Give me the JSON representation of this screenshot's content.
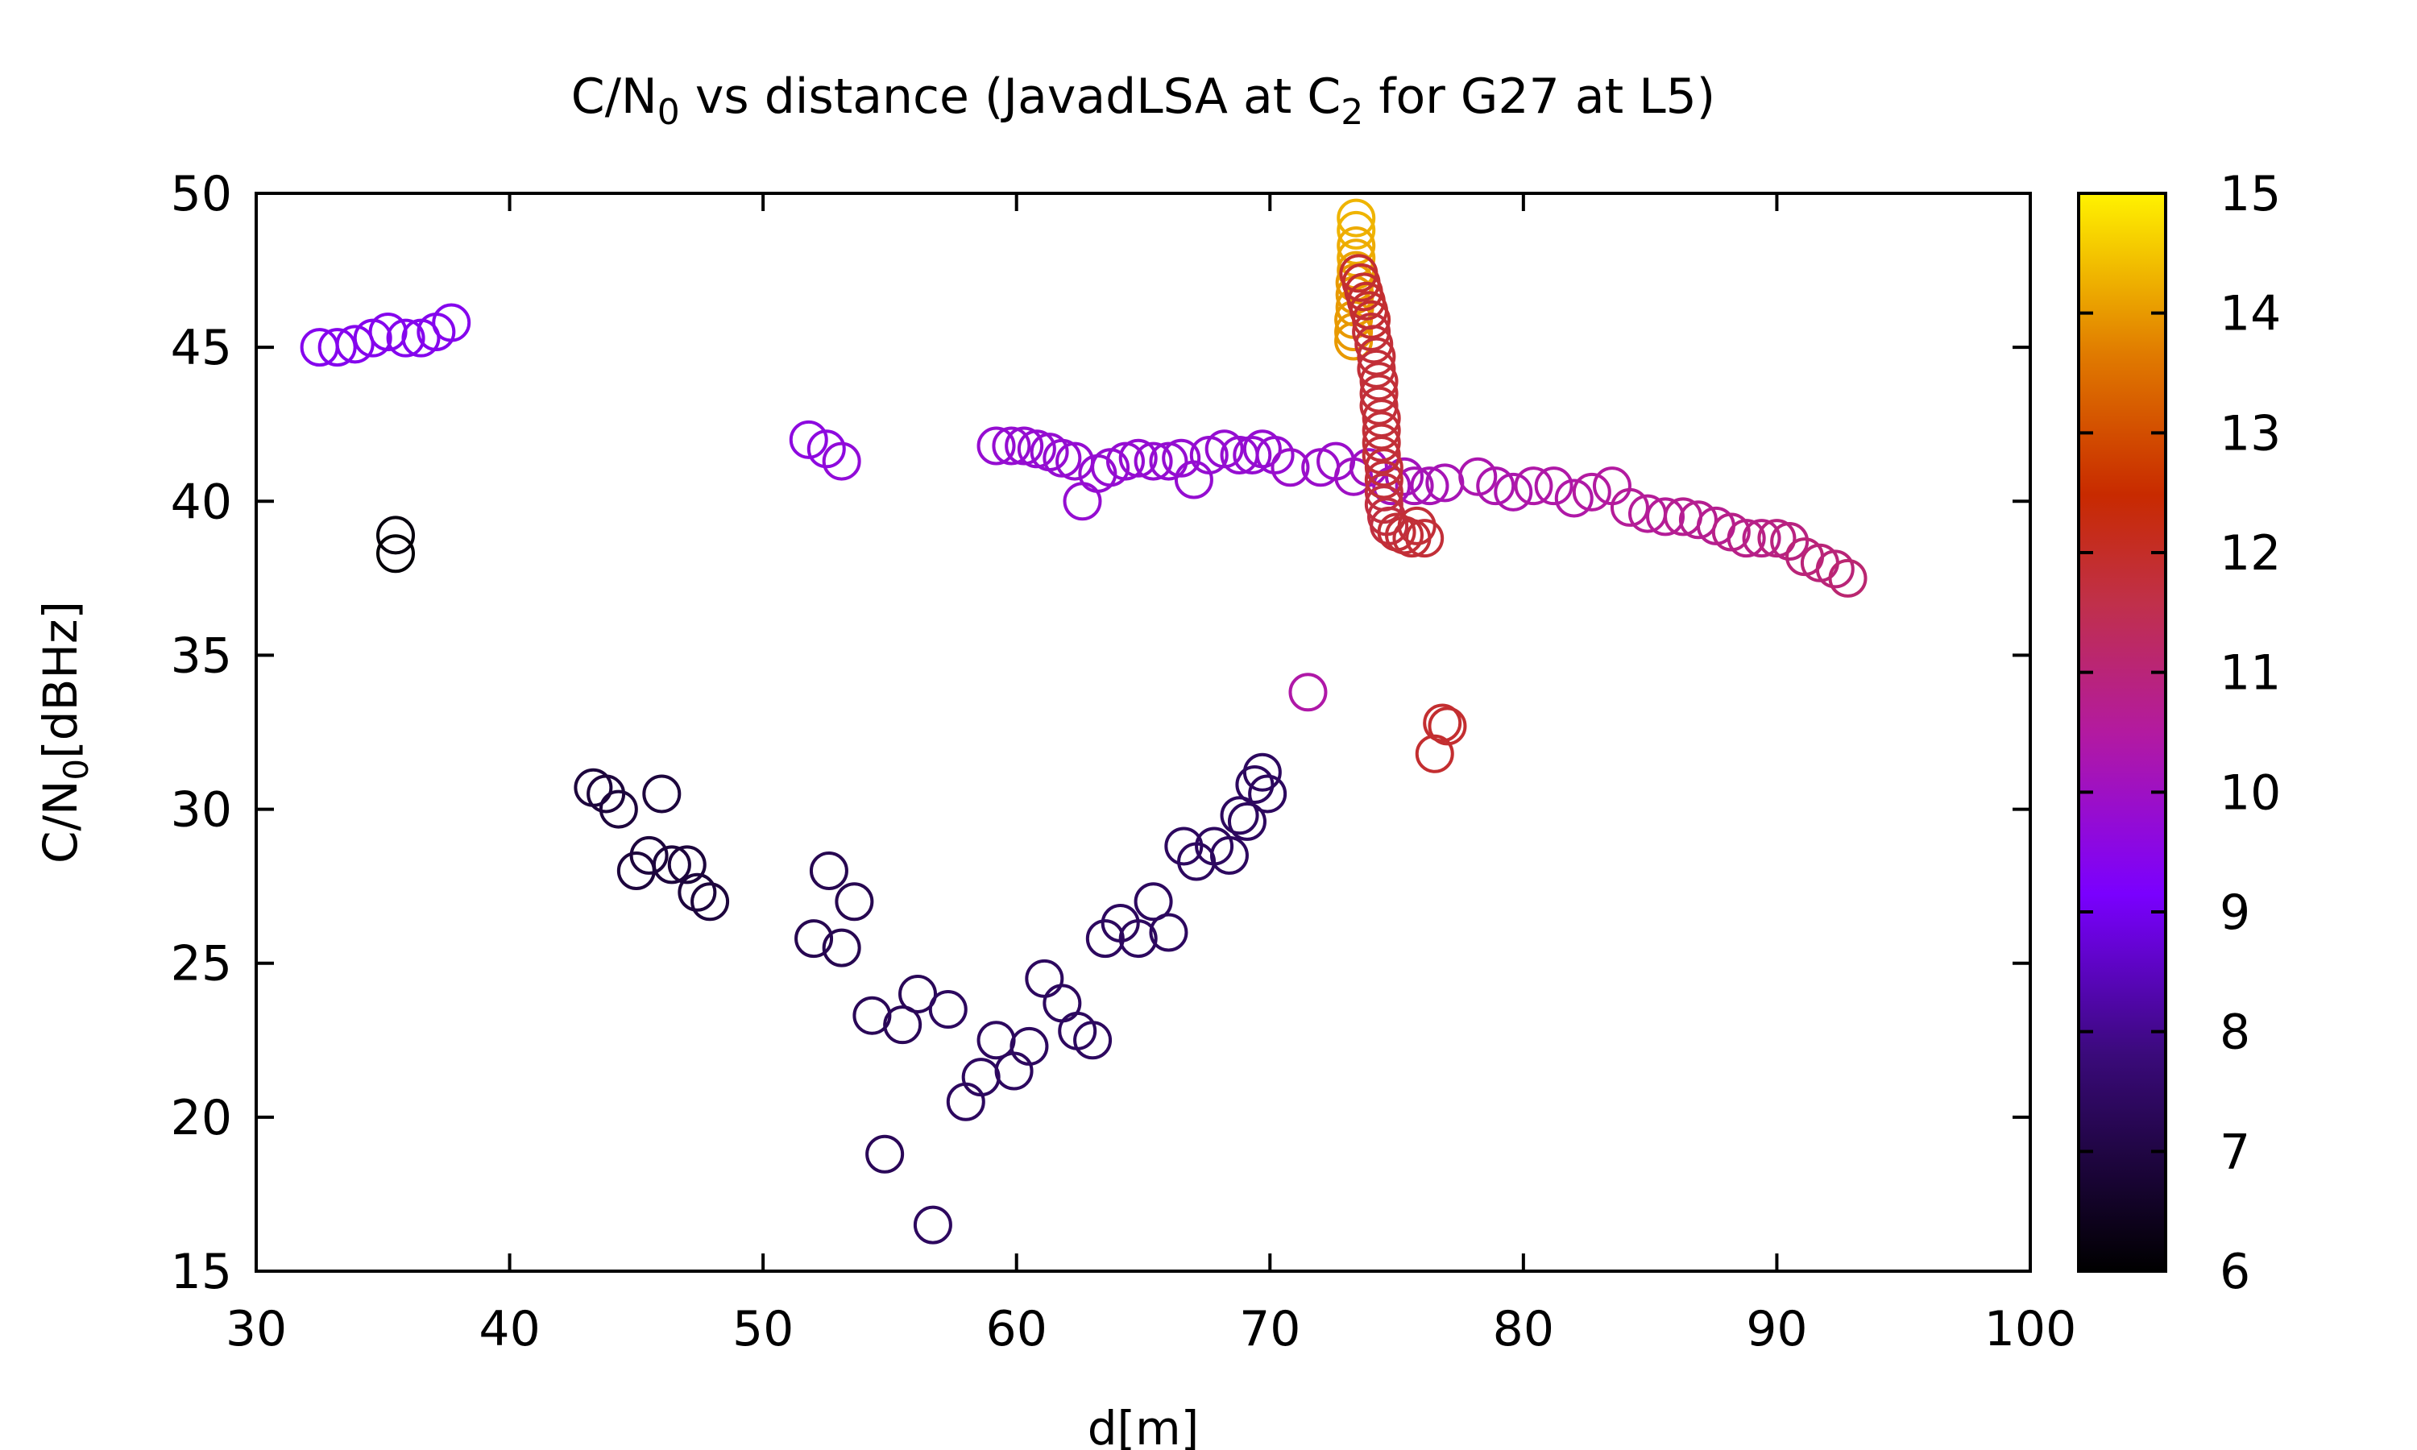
{
  "chart_data": {
    "type": "scatter",
    "title": {
      "parts": [
        {
          "text": "C/N",
          "sub": false
        },
        {
          "text": "0",
          "sub": true
        },
        {
          "text": " vs distance (JavadLSA at C",
          "sub": false
        },
        {
          "text": "2",
          "sub": true
        },
        {
          "text": " for G27 at L5)",
          "sub": false
        }
      ]
    },
    "xlabel": "d[m]",
    "ylabel": {
      "parts": [
        {
          "text": "C/N",
          "sub": false
        },
        {
          "text": "0",
          "sub": true
        },
        {
          "text": "[dBHz]",
          "sub": false
        }
      ]
    },
    "xlim": [
      30,
      100
    ],
    "ylim": [
      15,
      50
    ],
    "x_ticks": [
      30,
      40,
      50,
      60,
      70,
      80,
      90,
      100
    ],
    "y_ticks": [
      15,
      20,
      25,
      30,
      35,
      40,
      45,
      50
    ],
    "colorbar": {
      "range": [
        6,
        15
      ],
      "ticks": [
        6,
        7,
        8,
        9,
        10,
        11,
        12,
        13,
        14,
        15
      ],
      "palette": "black-purple-red-orange-yellow"
    },
    "grid": false,
    "marker": "open-circle",
    "points": [
      [
        32.5,
        45.0,
        9.4
      ],
      [
        33.2,
        45.0,
        9.4
      ],
      [
        33.9,
        45.1,
        9.4
      ],
      [
        34.6,
        45.3,
        9.4
      ],
      [
        35.2,
        45.5,
        9.4
      ],
      [
        35.9,
        45.3,
        9.4
      ],
      [
        36.5,
        45.3,
        9.4
      ],
      [
        37.1,
        45.5,
        9.4
      ],
      [
        37.7,
        45.8,
        9.4
      ],
      [
        35.5,
        38.9,
        6.2
      ],
      [
        35.5,
        38.3,
        6.1
      ],
      [
        51.8,
        42.0,
        9.6
      ],
      [
        52.5,
        41.7,
        9.6
      ],
      [
        53.1,
        41.3,
        9.7
      ],
      [
        59.2,
        41.8,
        9.8
      ],
      [
        59.8,
        41.8,
        9.8
      ],
      [
        60.3,
        41.8,
        9.8
      ],
      [
        60.8,
        41.7,
        9.8
      ],
      [
        61.3,
        41.6,
        9.8
      ],
      [
        61.8,
        41.4,
        9.8
      ],
      [
        62.3,
        41.3,
        9.8
      ],
      [
        62.6,
        40.0,
        9.8
      ],
      [
        63.2,
        40.9,
        9.8
      ],
      [
        63.7,
        41.1,
        9.8
      ],
      [
        64.3,
        41.3,
        9.8
      ],
      [
        64.8,
        41.4,
        9.8
      ],
      [
        65.4,
        41.3,
        9.8
      ],
      [
        66.0,
        41.3,
        9.8
      ],
      [
        66.5,
        41.4,
        9.8
      ],
      [
        67.0,
        40.7,
        9.8
      ],
      [
        67.6,
        41.5,
        9.8
      ],
      [
        68.2,
        41.7,
        9.8
      ],
      [
        68.8,
        41.5,
        9.8
      ],
      [
        69.3,
        41.5,
        9.8
      ],
      [
        69.7,
        41.7,
        9.8
      ],
      [
        70.2,
        41.5,
        9.8
      ],
      [
        70.8,
        41.1,
        9.9
      ],
      [
        72.0,
        41.1,
        9.9
      ],
      [
        72.6,
        41.3,
        9.9
      ],
      [
        73.3,
        40.8,
        10.0
      ],
      [
        73.9,
        41.1,
        10.0
      ],
      [
        74.8,
        40.5,
        10.1
      ],
      [
        75.3,
        40.8,
        10.1
      ],
      [
        75.7,
        40.5,
        10.2
      ],
      [
        76.3,
        40.5,
        10.2
      ],
      [
        76.9,
        40.6,
        10.2
      ],
      [
        78.2,
        40.8,
        10.3
      ],
      [
        78.9,
        40.5,
        10.3
      ],
      [
        79.6,
        40.3,
        10.3
      ],
      [
        80.4,
        40.5,
        10.4
      ],
      [
        81.2,
        40.5,
        10.4
      ],
      [
        82.0,
        40.1,
        10.4
      ],
      [
        82.7,
        40.3,
        10.5
      ],
      [
        83.5,
        40.5,
        10.5
      ],
      [
        84.2,
        39.8,
        10.6
      ],
      [
        84.9,
        39.6,
        10.6
      ],
      [
        85.6,
        39.5,
        10.6
      ],
      [
        86.3,
        39.5,
        10.7
      ],
      [
        86.9,
        39.4,
        10.7
      ],
      [
        87.6,
        39.2,
        10.7
      ],
      [
        88.2,
        39.0,
        10.8
      ],
      [
        88.8,
        38.8,
        10.8
      ],
      [
        89.4,
        38.8,
        10.8
      ],
      [
        90.0,
        38.8,
        10.9
      ],
      [
        90.5,
        38.7,
        10.9
      ],
      [
        91.1,
        38.2,
        11.0
      ],
      [
        91.7,
        38.0,
        11.0
      ],
      [
        92.3,
        37.8,
        11.0
      ],
      [
        92.8,
        37.5,
        11.1
      ],
      [
        43.3,
        30.7,
        6.9
      ],
      [
        43.8,
        30.5,
        6.9
      ],
      [
        44.3,
        30.0,
        6.9
      ],
      [
        45.0,
        28.0,
        6.9
      ],
      [
        45.5,
        28.5,
        6.9
      ],
      [
        46.0,
        30.5,
        6.9
      ],
      [
        46.4,
        28.2,
        6.9
      ],
      [
        47.0,
        28.2,
        6.9
      ],
      [
        47.4,
        27.3,
        6.9
      ],
      [
        47.9,
        27.0,
        6.9
      ],
      [
        52.0,
        25.8,
        7.2
      ],
      [
        52.6,
        28.0,
        7.2
      ],
      [
        53.1,
        25.5,
        7.2
      ],
      [
        53.6,
        27.0,
        7.2
      ],
      [
        54.3,
        23.3,
        7.3
      ],
      [
        54.8,
        18.8,
        7.3
      ],
      [
        55.5,
        23.0,
        7.3
      ],
      [
        56.1,
        24.0,
        7.3
      ],
      [
        56.7,
        16.5,
        7.4
      ],
      [
        57.3,
        23.5,
        7.4
      ],
      [
        58.0,
        20.5,
        7.4
      ],
      [
        58.6,
        21.3,
        7.4
      ],
      [
        59.2,
        22.5,
        7.4
      ],
      [
        59.9,
        21.5,
        7.4
      ],
      [
        60.5,
        22.3,
        7.4
      ],
      [
        61.1,
        24.5,
        7.4
      ],
      [
        61.8,
        23.7,
        7.4
      ],
      [
        62.4,
        22.8,
        7.4
      ],
      [
        63.0,
        22.5,
        7.4
      ],
      [
        63.5,
        25.8,
        7.4
      ],
      [
        64.1,
        26.3,
        7.4
      ],
      [
        64.8,
        25.8,
        7.4
      ],
      [
        65.4,
        27.0,
        7.4
      ],
      [
        66.0,
        26.0,
        7.4
      ],
      [
        66.6,
        28.8,
        7.4
      ],
      [
        67.1,
        28.3,
        7.4
      ],
      [
        67.8,
        28.8,
        7.4
      ],
      [
        68.4,
        28.5,
        7.4
      ],
      [
        68.8,
        29.8,
        7.4
      ],
      [
        69.1,
        29.6,
        7.4
      ],
      [
        69.4,
        30.8,
        7.4
      ],
      [
        69.7,
        31.2,
        7.4
      ],
      [
        69.9,
        30.5,
        7.4
      ],
      [
        71.5,
        33.8,
        10.4
      ],
      [
        76.5,
        31.8,
        11.9
      ],
      [
        76.8,
        32.8,
        11.9
      ],
      [
        77.0,
        32.7,
        11.9
      ],
      [
        73.4,
        49.2,
        14.3
      ],
      [
        73.4,
        48.8,
        14.3
      ],
      [
        73.4,
        48.3,
        14.2
      ],
      [
        73.4,
        47.9,
        14.2
      ],
      [
        73.4,
        47.5,
        14.1
      ],
      [
        73.35,
        47.1,
        14.0
      ],
      [
        73.35,
        46.7,
        14.0
      ],
      [
        73.35,
        46.3,
        14.0
      ],
      [
        73.3,
        45.9,
        14.0
      ],
      [
        73.3,
        45.5,
        14.0
      ],
      [
        73.3,
        45.2,
        14.0
      ],
      [
        73.5,
        47.4,
        11.9
      ],
      [
        73.6,
        47.1,
        11.9
      ],
      [
        73.7,
        46.8,
        11.9
      ],
      [
        73.8,
        46.5,
        11.9
      ],
      [
        73.9,
        46.2,
        11.9
      ],
      [
        74.0,
        45.9,
        11.9
      ],
      [
        74.0,
        45.5,
        11.8
      ],
      [
        74.1,
        45.1,
        11.8
      ],
      [
        74.2,
        44.7,
        11.8
      ],
      [
        74.2,
        44.3,
        11.8
      ],
      [
        74.3,
        43.9,
        11.8
      ],
      [
        74.3,
        43.5,
        11.8
      ],
      [
        74.3,
        43.1,
        11.8
      ],
      [
        74.4,
        42.7,
        11.8
      ],
      [
        74.4,
        42.3,
        11.8
      ],
      [
        74.4,
        41.9,
        11.8
      ],
      [
        74.4,
        41.5,
        11.8
      ],
      [
        74.5,
        41.1,
        11.8
      ],
      [
        74.5,
        40.7,
        11.8
      ],
      [
        74.5,
        40.3,
        11.7
      ],
      [
        74.5,
        39.9,
        11.7
      ],
      [
        74.6,
        39.5,
        11.7
      ],
      [
        74.7,
        39.2,
        11.7
      ],
      [
        75.0,
        39.0,
        11.8
      ],
      [
        75.3,
        38.9,
        11.8
      ],
      [
        75.6,
        38.8,
        11.8
      ],
      [
        75.8,
        39.2,
        11.8
      ],
      [
        76.1,
        38.8,
        11.8
      ]
    ]
  }
}
